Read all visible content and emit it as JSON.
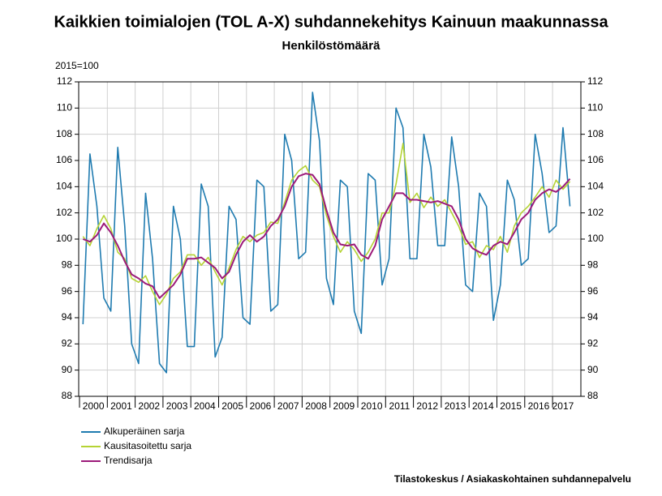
{
  "chart_data": {
    "type": "line",
    "title": "Kaikkien toimialojen (TOL A-X) suhdannekehitys Kainuun maakunnassa",
    "subtitle": "Henkilöstömäärä",
    "y_label": "2015=100",
    "source": "Tilastokeskus / Asiakaskohtainen suhdannepalvelu",
    "categories": [
      "2000",
      null,
      null,
      null,
      "2001",
      null,
      null,
      null,
      "2002",
      null,
      null,
      null,
      "2003",
      null,
      null,
      null,
      "2004",
      null,
      null,
      null,
      "2005",
      null,
      null,
      null,
      "2006",
      null,
      null,
      null,
      "2007",
      null,
      null,
      null,
      "2008",
      null,
      null,
      null,
      "2009",
      null,
      null,
      null,
      "2010",
      null,
      null,
      null,
      "2011",
      null,
      null,
      null,
      "2012",
      null,
      null,
      null,
      "2013",
      null,
      null,
      null,
      "2014",
      null,
      null,
      null,
      "2015",
      null,
      null,
      null,
      "2016",
      null,
      null,
      null,
      "2017",
      null,
      null
    ],
    "series": [
      {
        "name": "Alkuperäinen sarja",
        "color": "#1f7bb0",
        "values": [
          93.5,
          106.5,
          102.5,
          95.5,
          94.5,
          107.0,
          101.0,
          92.0,
          90.5,
          103.5,
          98.5,
          90.5,
          89.8,
          102.5,
          100.0,
          91.8,
          91.8,
          104.2,
          102.5,
          91.0,
          92.5,
          102.5,
          101.5,
          94.0,
          93.5,
          104.5,
          104.0,
          94.5,
          95.0,
          108.0,
          106.0,
          98.5,
          99.0,
          111.2,
          107.5,
          97.0,
          95.0,
          104.5,
          104.0,
          94.5,
          92.8,
          105.0,
          104.5,
          96.5,
          98.5,
          110.0,
          108.5,
          98.5,
          98.5,
          108.0,
          105.5,
          99.5,
          99.5,
          107.8,
          104.0,
          96.5,
          96.0,
          103.5,
          102.5,
          93.8,
          96.5,
          104.5,
          103.0,
          98.0,
          98.5,
          108.0,
          105.0,
          100.5,
          101.0,
          108.5,
          102.5
        ]
      },
      {
        "name": "Kausitasoitettu sarja",
        "color": "#b5d334",
        "values": [
          100.2,
          99.5,
          100.8,
          101.8,
          100.8,
          99.0,
          98.5,
          97.0,
          96.7,
          97.2,
          96.0,
          95.0,
          95.8,
          97.0,
          97.5,
          98.8,
          98.8,
          98.0,
          98.6,
          97.5,
          96.5,
          97.8,
          99.2,
          100.2,
          99.8,
          100.3,
          100.5,
          101.3,
          101.2,
          102.8,
          104.5,
          105.2,
          105.6,
          104.5,
          104.0,
          101.8,
          100.2,
          99.0,
          99.8,
          99.2,
          98.3,
          99.0,
          100.0,
          102.0,
          102.0,
          104.2,
          107.3,
          102.8,
          103.5,
          102.4,
          103.2,
          102.5,
          103.0,
          102.0,
          101.0,
          99.6,
          99.8,
          98.6,
          99.5,
          99.2,
          100.2,
          99.0,
          101.0,
          102.0,
          102.5,
          103.2,
          104.0,
          103.2,
          104.5,
          103.8,
          104.4
        ]
      },
      {
        "name": "Trendisarja",
        "color": "#9c1a7a",
        "values": [
          100.0,
          99.8,
          100.3,
          101.2,
          100.5,
          99.5,
          98.3,
          97.3,
          97.0,
          96.6,
          96.4,
          95.5,
          96.0,
          96.5,
          97.3,
          98.5,
          98.5,
          98.6,
          98.2,
          97.8,
          97.0,
          97.5,
          98.8,
          99.8,
          100.3,
          99.8,
          100.2,
          101.0,
          101.5,
          102.5,
          104.0,
          104.8,
          105.0,
          104.9,
          104.2,
          102.2,
          100.5,
          99.6,
          99.5,
          99.6,
          98.8,
          98.5,
          99.5,
          101.5,
          102.5,
          103.5,
          103.5,
          103.0,
          103.0,
          102.9,
          102.8,
          102.9,
          102.7,
          102.5,
          101.5,
          100.0,
          99.3,
          99.0,
          98.8,
          99.5,
          99.8,
          99.6,
          100.5,
          101.5,
          102.0,
          103.0,
          103.5,
          103.8,
          103.6,
          104.0,
          104.6
        ]
      }
    ],
    "ylim": [
      88,
      112
    ],
    "yticks": [
      88,
      90,
      92,
      94,
      96,
      98,
      100,
      102,
      104,
      106,
      108,
      110,
      112
    ],
    "y2lim": [
      88,
      112
    ],
    "y2ticks": [
      88,
      90,
      92,
      94,
      96,
      98,
      100,
      102,
      104,
      106,
      108,
      110,
      112
    ],
    "grid": true,
    "legend": "bottom-left"
  }
}
